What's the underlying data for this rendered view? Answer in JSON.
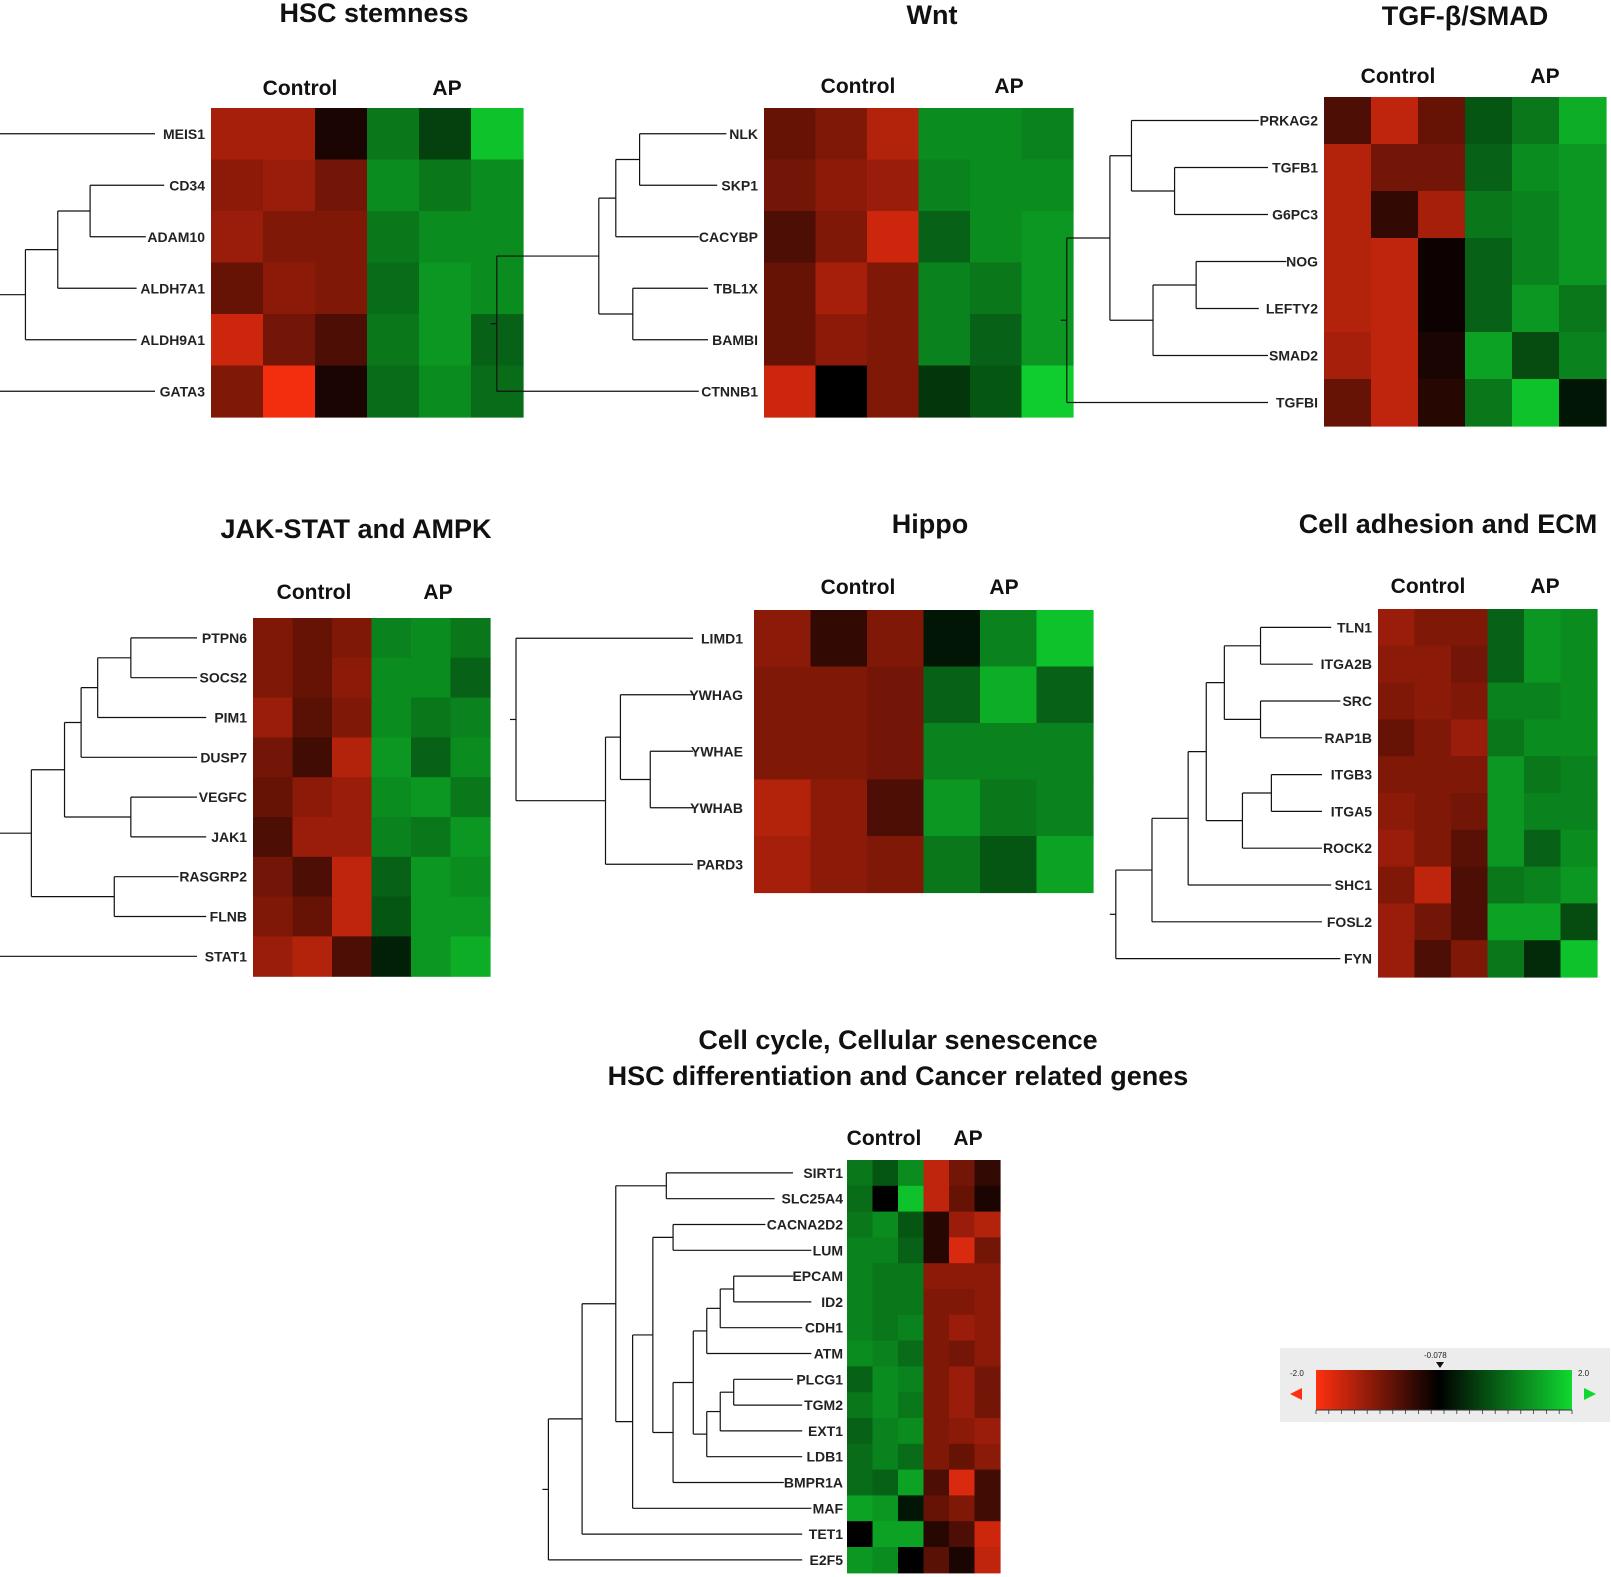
{
  "chart_data": [
    {
      "type": "heatmap",
      "title": "HSC stemness",
      "groups": [
        "Control",
        "AP"
      ],
      "samples_per_group": 3,
      "genes": [
        "MEIS1",
        "CD34",
        "ADAM10",
        "ALDH7A1",
        "ALDH9A1",
        "GATA3"
      ],
      "values": [
        [
          -1.3,
          -1.3,
          -0.2,
          1.1,
          0.6,
          1.8
        ],
        [
          -1.1,
          -1.2,
          -0.9,
          1.3,
          1.1,
          1.3
        ],
        [
          -1.2,
          -1.0,
          -1.0,
          1.1,
          1.3,
          1.3
        ],
        [
          -0.8,
          -1.1,
          -1.0,
          1.0,
          1.4,
          1.3
        ],
        [
          -1.6,
          -0.9,
          -0.6,
          1.1,
          1.4,
          0.9
        ],
        [
          -1.0,
          -1.9,
          -0.2,
          1.0,
          1.3,
          1.0
        ]
      ]
    },
    {
      "type": "heatmap",
      "title": "Wnt",
      "groups": [
        "Control",
        "AP"
      ],
      "samples_per_group": 3,
      "genes": [
        "NLK",
        "SKP1",
        "CACYBP",
        "TBL1X",
        "BAMBI",
        "CTNNB1"
      ],
      "values": [
        [
          -0.8,
          -1.0,
          -1.4,
          1.3,
          1.3,
          1.2
        ],
        [
          -0.9,
          -1.1,
          -1.2,
          1.2,
          1.3,
          1.3
        ],
        [
          -0.6,
          -1.0,
          -1.6,
          0.9,
          1.3,
          1.4
        ],
        [
          -0.8,
          -1.3,
          -1.0,
          1.2,
          1.1,
          1.4
        ],
        [
          -0.8,
          -1.1,
          -1.0,
          1.2,
          0.9,
          1.4
        ],
        [
          -1.6,
          0.0,
          -1.0,
          0.5,
          0.8,
          1.9
        ]
      ]
    },
    {
      "type": "heatmap",
      "title": "TGF-β/SMAD",
      "groups": [
        "Control",
        "AP"
      ],
      "samples_per_group": 3,
      "genes": [
        "PRKAG2",
        "TGFB1",
        "G6PC3",
        "NOG",
        "LEFTY2",
        "SMAD2",
        "TGFBI"
      ],
      "values": [
        [
          -0.6,
          -1.5,
          -0.8,
          0.8,
          1.1,
          1.6
        ],
        [
          -1.4,
          -0.9,
          -0.9,
          0.9,
          1.3,
          1.4
        ],
        [
          -1.4,
          -0.4,
          -1.3,
          1.1,
          1.2,
          1.4
        ],
        [
          -1.4,
          -1.5,
          -0.1,
          0.9,
          1.2,
          1.4
        ],
        [
          -1.4,
          -1.5,
          -0.1,
          0.9,
          1.4,
          1.1
        ],
        [
          -1.3,
          -1.5,
          -0.2,
          1.5,
          0.7,
          1.2
        ],
        [
          -0.8,
          -1.5,
          -0.3,
          1.1,
          1.8,
          0.2
        ]
      ]
    },
    {
      "type": "heatmap",
      "title": "JAK-STAT and AMPK",
      "groups": [
        "Control",
        "AP"
      ],
      "samples_per_group": 3,
      "genes": [
        "PTPN6",
        "SOCS2",
        "PIM1",
        "DUSP7",
        "VEGFC",
        "JAK1",
        "RASGRP2",
        "FLNB",
        "STAT1"
      ],
      "values": [
        [
          -1.0,
          -0.8,
          -1.0,
          1.2,
          1.3,
          1.1
        ],
        [
          -1.0,
          -0.8,
          -1.1,
          1.3,
          1.3,
          0.9
        ],
        [
          -1.2,
          -0.7,
          -1.0,
          1.3,
          1.1,
          1.2
        ],
        [
          -0.9,
          -0.5,
          -1.4,
          1.4,
          0.9,
          1.3
        ],
        [
          -0.8,
          -1.1,
          -1.2,
          1.3,
          1.4,
          1.1
        ],
        [
          -0.6,
          -1.2,
          -1.2,
          1.2,
          1.1,
          1.4
        ],
        [
          -0.9,
          -0.6,
          -1.5,
          0.9,
          1.4,
          1.3
        ],
        [
          -1.0,
          -0.8,
          -1.5,
          0.8,
          1.4,
          1.4
        ],
        [
          -1.2,
          -1.4,
          -0.6,
          0.3,
          1.4,
          1.6
        ]
      ]
    },
    {
      "type": "heatmap",
      "title": "Hippo",
      "groups": [
        "Control",
        "AP"
      ],
      "samples_per_group": 3,
      "genes": [
        "LIMD1",
        "YWHAG",
        "YWHAE",
        "YWHAB",
        "PARD3"
      ],
      "values": [
        [
          -1.1,
          -0.4,
          -1.0,
          0.2,
          1.2,
          1.8
        ],
        [
          -1.0,
          -1.0,
          -0.9,
          0.9,
          1.6,
          0.9
        ],
        [
          -1.0,
          -1.0,
          -0.9,
          1.2,
          1.2,
          1.2
        ],
        [
          -1.4,
          -1.1,
          -0.6,
          1.4,
          1.1,
          1.2
        ],
        [
          -1.3,
          -1.1,
          -1.0,
          1.1,
          0.8,
          1.5
        ]
      ]
    },
    {
      "type": "heatmap",
      "title": "Cell adhesion and ECM",
      "groups": [
        "Control",
        "AP"
      ],
      "samples_per_group": 3,
      "genes": [
        "TLN1",
        "ITGA2B",
        "SRC",
        "RAP1B",
        "ITGB3",
        "ITGA5",
        "ROCK2",
        "SHC1",
        "FOSL2",
        "FYN"
      ],
      "values": [
        [
          -1.2,
          -1.0,
          -1.0,
          0.9,
          1.4,
          1.3
        ],
        [
          -1.1,
          -1.1,
          -0.9,
          0.9,
          1.4,
          1.3
        ],
        [
          -1.0,
          -1.1,
          -1.0,
          1.2,
          1.2,
          1.3
        ],
        [
          -0.8,
          -1.0,
          -1.2,
          1.1,
          1.3,
          1.3
        ],
        [
          -1.0,
          -1.0,
          -1.0,
          1.4,
          1.1,
          1.2
        ],
        [
          -1.1,
          -1.0,
          -0.9,
          1.4,
          1.2,
          1.2
        ],
        [
          -1.2,
          -1.0,
          -0.7,
          1.4,
          0.9,
          1.3
        ],
        [
          -1.0,
          -1.5,
          -0.6,
          1.1,
          1.2,
          1.4
        ],
        [
          -1.2,
          -0.9,
          -0.6,
          1.5,
          1.5,
          0.7
        ],
        [
          -1.2,
          -0.6,
          -1.0,
          1.1,
          0.4,
          1.8
        ]
      ]
    },
    {
      "type": "heatmap",
      "title": "Cell cycle, Cellular senescence HSC differentiation and Cancer related genes",
      "title_lines": [
        "Cell cycle, Cellular senescence",
        "HSC differentiation and Cancer related genes"
      ],
      "groups": [
        "Control",
        "AP"
      ],
      "samples_per_group": 3,
      "genes": [
        "SIRT1",
        "SLC25A4",
        "CACNA2D2",
        "LUM",
        "EPCAM",
        "ID2",
        "CDH1",
        "ATM",
        "PLCG1",
        "TGM2",
        "EXT1",
        "LDB1",
        "BMPR1A",
        "MAF",
        "TET1",
        "E2F5"
      ],
      "values": [
        [
          1.1,
          0.8,
          1.3,
          -1.5,
          -0.9,
          -0.4
        ],
        [
          1.0,
          0.0,
          1.8,
          -1.5,
          -0.8,
          -0.2
        ],
        [
          1.1,
          1.3,
          0.8,
          -0.3,
          -1.2,
          -1.4
        ],
        [
          1.2,
          1.2,
          0.9,
          -0.3,
          -1.7,
          -0.9
        ],
        [
          1.2,
          1.1,
          1.1,
          -1.1,
          -1.1,
          -1.1
        ],
        [
          1.2,
          1.1,
          1.1,
          -1.0,
          -1.0,
          -1.1
        ],
        [
          1.2,
          1.1,
          1.2,
          -1.0,
          -1.2,
          -1.1
        ],
        [
          1.3,
          1.2,
          1.0,
          -1.0,
          -0.9,
          -1.1
        ],
        [
          0.9,
          1.3,
          1.2,
          -1.0,
          -1.2,
          -0.9
        ],
        [
          1.1,
          1.3,
          1.1,
          -1.0,
          -1.2,
          -0.9
        ],
        [
          0.9,
          1.2,
          1.3,
          -1.0,
          -1.1,
          -1.2
        ],
        [
          1.0,
          1.2,
          1.0,
          -1.0,
          -0.8,
          -1.1
        ],
        [
          1.0,
          0.9,
          1.5,
          -0.6,
          -1.7,
          -0.5
        ],
        [
          1.5,
          1.4,
          0.2,
          -0.8,
          -1.0,
          -0.5
        ],
        [
          0.0,
          1.5,
          1.5,
          -0.3,
          -0.6,
          -1.6
        ],
        [
          1.4,
          1.3,
          0.0,
          -0.7,
          -0.2,
          -1.5
        ]
      ]
    }
  ],
  "color_scale": {
    "min_label": "-2.0",
    "max_label": "2.0",
    "mid_label": "-0.078",
    "min_color": "#ff3010",
    "mid_color": "#000000",
    "max_color": "#10d830"
  }
}
